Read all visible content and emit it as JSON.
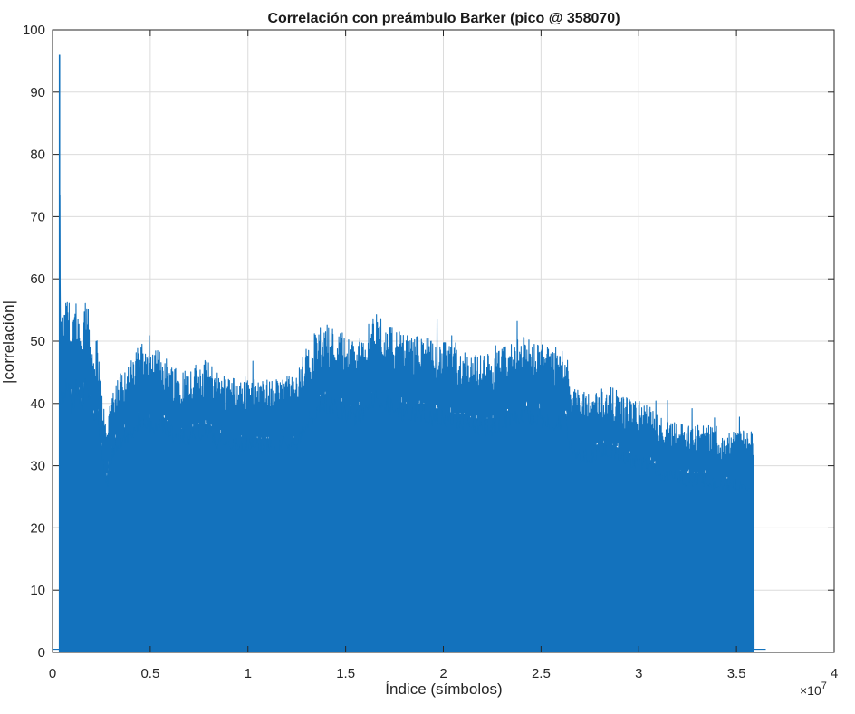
{
  "chart_data": {
    "type": "area",
    "title": "Correlación con preámbulo Barker (pico @ 358070)",
    "xlabel": "Índice (símbolos)",
    "ylabel": "|correlación|",
    "xlim": [
      0,
      4
    ],
    "ylim": [
      0,
      100
    ],
    "x_multiplier_label": "×10",
    "x_multiplier_exp": "7",
    "x_ticks": [
      "0",
      "0.5",
      "1",
      "1.5",
      "2",
      "2.5",
      "3",
      "3.5",
      "4"
    ],
    "y_ticks": [
      "0",
      "10",
      "20",
      "30",
      "40",
      "50",
      "60",
      "70",
      "80",
      "90",
      "100"
    ],
    "grid": true,
    "color": "#1372bd",
    "peak": {
      "x": 0.0358,
      "y": 96
    },
    "envelope_points": [
      [
        0.0,
        0.5
      ],
      [
        0.035,
        0.5
      ],
      [
        0.0358,
        96
      ],
      [
        0.04,
        53
      ],
      [
        0.06,
        54
      ],
      [
        0.08,
        57
      ],
      [
        0.1,
        51
      ],
      [
        0.12,
        56
      ],
      [
        0.15,
        50
      ],
      [
        0.17,
        58
      ],
      [
        0.19,
        52
      ],
      [
        0.21,
        48
      ],
      [
        0.23,
        50
      ],
      [
        0.25,
        42
      ],
      [
        0.27,
        37
      ],
      [
        0.28,
        35
      ],
      [
        0.29,
        40
      ],
      [
        0.32,
        43
      ],
      [
        0.36,
        45
      ],
      [
        0.4,
        46
      ],
      [
        0.45,
        49
      ],
      [
        0.5,
        47
      ],
      [
        0.55,
        48
      ],
      [
        0.6,
        46
      ],
      [
        0.65,
        45
      ],
      [
        0.7,
        45
      ],
      [
        0.75,
        46
      ],
      [
        0.8,
        46
      ],
      [
        0.85,
        44
      ],
      [
        0.9,
        44
      ],
      [
        0.95,
        43
      ],
      [
        1.0,
        44
      ],
      [
        1.05,
        43
      ],
      [
        1.1,
        43
      ],
      [
        1.15,
        43
      ],
      [
        1.2,
        44
      ],
      [
        1.24,
        43
      ],
      [
        1.27,
        46
      ],
      [
        1.3,
        48
      ],
      [
        1.35,
        51
      ],
      [
        1.4,
        52
      ],
      [
        1.45,
        51
      ],
      [
        1.5,
        50
      ],
      [
        1.55,
        49
      ],
      [
        1.6,
        51
      ],
      [
        1.65,
        53
      ],
      [
        1.7,
        52
      ],
      [
        1.75,
        51
      ],
      [
        1.8,
        50
      ],
      [
        1.85,
        50
      ],
      [
        1.9,
        50
      ],
      [
        1.95,
        49
      ],
      [
        2.0,
        49
      ],
      [
        2.05,
        48
      ],
      [
        2.1,
        48
      ],
      [
        2.15,
        47
      ],
      [
        2.2,
        47
      ],
      [
        2.25,
        47
      ],
      [
        2.3,
        48
      ],
      [
        2.35,
        49
      ],
      [
        2.4,
        50
      ],
      [
        2.45,
        49
      ],
      [
        2.5,
        49
      ],
      [
        2.55,
        48
      ],
      [
        2.6,
        48
      ],
      [
        2.63,
        48
      ],
      [
        2.65,
        43
      ],
      [
        2.7,
        41
      ],
      [
        2.75,
        41
      ],
      [
        2.8,
        42
      ],
      [
        2.85,
        42
      ],
      [
        2.9,
        41
      ],
      [
        2.95,
        40
      ],
      [
        3.0,
        40
      ],
      [
        3.05,
        39
      ],
      [
        3.08,
        38
      ],
      [
        3.12,
        37
      ],
      [
        3.18,
        37
      ],
      [
        3.24,
        36
      ],
      [
        3.3,
        36
      ],
      [
        3.35,
        36
      ],
      [
        3.4,
        35
      ],
      [
        3.45,
        35
      ],
      [
        3.5,
        35
      ],
      [
        3.55,
        35
      ],
      [
        3.58,
        35
      ],
      [
        3.59,
        34
      ],
      [
        3.595,
        0.5
      ],
      [
        3.65,
        0.5
      ]
    ]
  }
}
